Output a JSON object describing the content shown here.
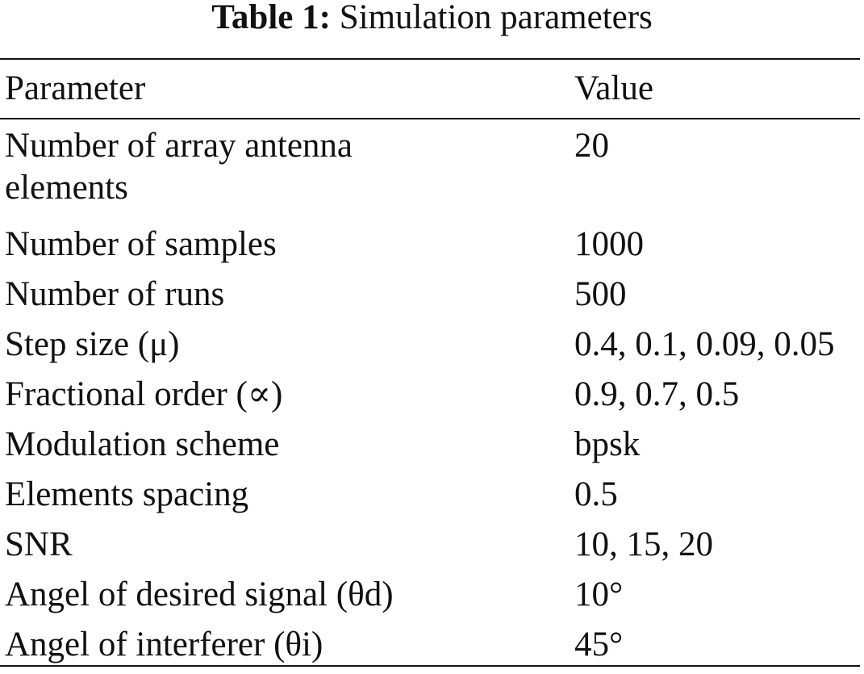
{
  "caption": {
    "label": "Table 1:",
    "title": "Simulation parameters"
  },
  "table": {
    "columns": [
      "Parameter",
      "Value"
    ],
    "rows": [
      {
        "parameter": "Number of array antenna elements",
        "value": "20"
      },
      {
        "parameter": "Number of samples",
        "value": "1000"
      },
      {
        "parameter": "Number of runs",
        "value": "500"
      },
      {
        "parameter": "Step size (μ)",
        "value": "0.4, 0.1, 0.09, 0.05"
      },
      {
        "parameter": "Fractional order (∝)",
        "value": "0.9, 0.7, 0.5"
      },
      {
        "parameter": "Modulation scheme",
        "value": "bpsk"
      },
      {
        "parameter": "Elements spacing",
        "value": "0.5"
      },
      {
        "parameter": "SNR",
        "value": "10, 15, 20"
      },
      {
        "parameter": "Angel of desired signal (θd)",
        "value": "10°"
      },
      {
        "parameter": "Angel of interferer (θi)",
        "value": "45°"
      }
    ]
  }
}
